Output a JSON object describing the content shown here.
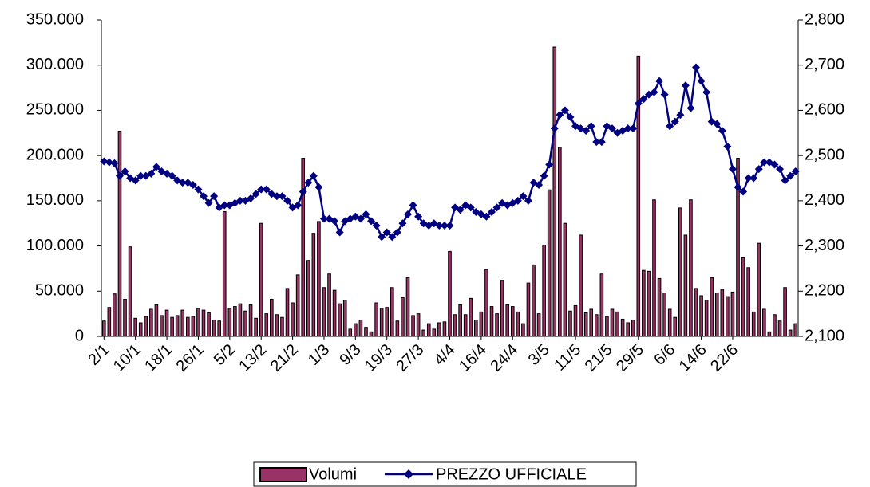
{
  "chart_data": {
    "type": "bar_line",
    "categories": [
      "2/1",
      null,
      null,
      null,
      null,
      null,
      "10/1",
      null,
      null,
      null,
      null,
      null,
      "18/1",
      null,
      null,
      null,
      null,
      null,
      "26/1",
      null,
      null,
      null,
      null,
      null,
      "5/2",
      null,
      null,
      null,
      null,
      null,
      "13/2",
      null,
      null,
      null,
      null,
      null,
      "21/2",
      null,
      null,
      null,
      null,
      null,
      "1/3",
      null,
      null,
      null,
      null,
      null,
      "9/3",
      null,
      null,
      null,
      null,
      null,
      "19/3",
      null,
      null,
      null,
      null,
      null,
      "27/3",
      null,
      null,
      null,
      null,
      null,
      "4/4",
      null,
      null,
      null,
      null,
      null,
      "16/4",
      null,
      null,
      null,
      null,
      null,
      "24/4",
      null,
      null,
      null,
      null,
      null,
      "3/5",
      null,
      null,
      null,
      null,
      null,
      "11/5",
      null,
      null,
      null,
      null,
      null,
      "21/5",
      null,
      null,
      null,
      null,
      null,
      "29/5",
      null,
      null,
      null,
      null,
      null,
      "6/6",
      null,
      null,
      null,
      null,
      null,
      "14/6",
      null,
      null,
      null,
      null,
      null,
      "22/6",
      null,
      null,
      null,
      null,
      null,
      null,
      null,
      null,
      null,
      null,
      null,
      null
    ],
    "series": [
      {
        "name": "Volumi",
        "color": "#993366",
        "values": [
          17000,
          32000,
          47000,
          227000,
          41000,
          99000,
          20000,
          15000,
          22000,
          30000,
          35000,
          23000,
          29000,
          21000,
          23000,
          29000,
          21000,
          22000,
          31000,
          29000,
          26000,
          18000,
          17000,
          138000,
          31000,
          33000,
          36000,
          28000,
          35000,
          20000,
          125000,
          25000,
          41000,
          24000,
          21000,
          53000,
          37000,
          68000,
          197000,
          84000,
          114000,
          127000,
          54000,
          69000,
          51000,
          36000,
          40000,
          8000,
          14000,
          18000,
          10000,
          5000,
          37000,
          31000,
          32000,
          54000,
          17000,
          43000,
          65000,
          23000,
          25000,
          7000,
          14000,
          8000,
          15000,
          16000,
          94000,
          24000,
          35000,
          24000,
          42000,
          18000,
          27000,
          74000,
          33000,
          25000,
          62000,
          35000,
          33000,
          27000,
          14000,
          59000,
          79000,
          25000,
          101000,
          162000,
          320000,
          209000,
          125000,
          28000,
          34000,
          112000,
          26000,
          30000,
          24000,
          69000,
          22000,
          30000,
          27000,
          19000,
          15000,
          18000,
          310000,
          73000,
          72000,
          151000,
          64000,
          48000,
          30000,
          21000,
          142000,
          112000,
          151000,
          53000,
          45000,
          40000,
          65000,
          48000,
          52000,
          44000,
          49000,
          197000,
          87000,
          76000,
          27000,
          103000,
          30000,
          5000,
          24000,
          17000,
          54000,
          7000,
          14000
        ]
      },
      {
        "name": "PREZZO UFFICIALE",
        "color": "#000080",
        "axis": "y2",
        "values": [
          2487,
          2485,
          2483,
          2455,
          2465,
          2450,
          2445,
          2455,
          2455,
          2460,
          2475,
          2465,
          2460,
          2455,
          2445,
          2440,
          2440,
          2435,
          2425,
          2410,
          2395,
          2410,
          2385,
          2390,
          2390,
          2395,
          2400,
          2400,
          2405,
          2415,
          2425,
          2425,
          2415,
          2410,
          2410,
          2400,
          2385,
          2390,
          2420,
          2440,
          2455,
          2430,
          2360,
          2360,
          2355,
          2330,
          2355,
          2360,
          2365,
          2360,
          2370,
          2355,
          2345,
          2320,
          2330,
          2320,
          2330,
          2350,
          2370,
          2390,
          2365,
          2350,
          2345,
          2350,
          2345,
          2345,
          2345,
          2385,
          2380,
          2390,
          2385,
          2375,
          2370,
          2365,
          2375,
          2385,
          2395,
          2390,
          2395,
          2400,
          2410,
          2400,
          2440,
          2435,
          2455,
          2480,
          2560,
          2590,
          2600,
          2585,
          2565,
          2560,
          2555,
          2565,
          2530,
          2530,
          2565,
          2560,
          2550,
          2555,
          2560,
          2560,
          2615,
          2625,
          2635,
          2640,
          2665,
          2635,
          2565,
          2575,
          2590,
          2655,
          2605,
          2695,
          2665,
          2640,
          2575,
          2570,
          2555,
          2520,
          2470,
          2430,
          2420,
          2450,
          2450,
          2470,
          2485,
          2485,
          2480,
          2470,
          2445,
          2455,
          2465
        ]
      }
    ],
    "ylim": [
      0,
      350000
    ],
    "yticks": [
      0,
      {
        "value": 50000,
        "label": "50.000"
      },
      {
        "value": 100000,
        "label": "100.000"
      },
      {
        "value": 150000,
        "label": "150.000"
      },
      {
        "value": 200000,
        "label": "200.000"
      },
      {
        "value": 250000,
        "label": "250.000"
      },
      {
        "value": 300000,
        "label": "300.000"
      },
      {
        "value": 350000,
        "label": "350.000"
      }
    ],
    "y2lim": [
      2100,
      2800
    ],
    "y2ticks": [
      {
        "value": 2100,
        "label": "2,100"
      },
      {
        "value": 2200,
        "label": "2,200"
      },
      {
        "value": 2300,
        "label": "2,300"
      },
      {
        "value": 2400,
        "label": "2,400"
      },
      {
        "value": 2500,
        "label": "2,500"
      },
      {
        "value": 2600,
        "label": "2,600"
      },
      {
        "value": 2700,
        "label": "2,700"
      },
      {
        "value": 2800,
        "label": "2,800"
      }
    ],
    "legend": "bottom"
  }
}
